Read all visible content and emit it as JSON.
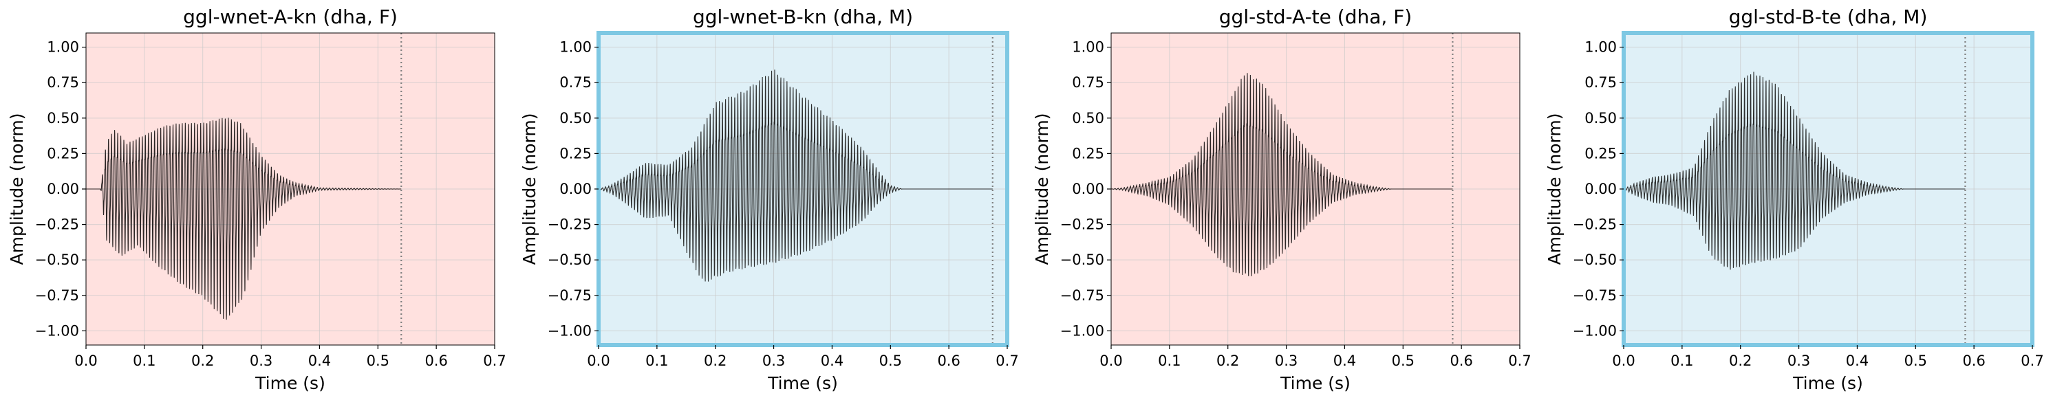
{
  "chart_data": [
    {
      "type": "line",
      "title": "ggl-wnet-A-kn (dha, F)",
      "xlabel": "Time (s)",
      "ylabel": "Amplitude (norm)",
      "xlim": [
        0.0,
        0.7
      ],
      "ylim": [
        -1.1,
        1.1
      ],
      "xticks": [
        "0.0",
        "0.1",
        "0.2",
        "0.3",
        "0.4",
        "0.5",
        "0.6",
        "0.7"
      ],
      "yticks": [
        "1.00",
        "0.75",
        "0.50",
        "0.25",
        "0.00",
        "−0.25",
        "−0.50",
        "−0.75",
        "−1.00"
      ],
      "grid": true,
      "background_color": "#ffe1df",
      "highlight_border": false,
      "end_marker_x": 0.54,
      "signal_end": 0.54,
      "waveform_color": "#2b2424",
      "envelope": [
        [
          0.0,
          0.0
        ],
        [
          0.025,
          0.0
        ],
        [
          0.035,
          0.4
        ],
        [
          0.05,
          0.5
        ],
        [
          0.07,
          0.38
        ],
        [
          0.1,
          0.45
        ],
        [
          0.13,
          0.52
        ],
        [
          0.16,
          0.55
        ],
        [
          0.2,
          0.55
        ],
        [
          0.24,
          0.6
        ],
        [
          0.265,
          0.55
        ],
        [
          0.3,
          0.28
        ],
        [
          0.33,
          0.12
        ],
        [
          0.36,
          0.05
        ],
        [
          0.4,
          0.01
        ],
        [
          0.54,
          0.0
        ]
      ],
      "envelope_negative": [
        [
          0.0,
          0.0
        ],
        [
          0.025,
          0.0
        ],
        [
          0.035,
          -0.38
        ],
        [
          0.06,
          -0.5
        ],
        [
          0.09,
          -0.42
        ],
        [
          0.12,
          -0.56
        ],
        [
          0.16,
          -0.7
        ],
        [
          0.2,
          -0.8
        ],
        [
          0.24,
          -0.98
        ],
        [
          0.27,
          -0.8
        ],
        [
          0.3,
          -0.32
        ],
        [
          0.33,
          -0.14
        ],
        [
          0.36,
          -0.05
        ],
        [
          0.4,
          -0.01
        ],
        [
          0.54,
          0.0
        ]
      ]
    },
    {
      "type": "line",
      "title": "ggl-wnet-B-kn (dha, M)",
      "xlabel": "Time (s)",
      "ylabel": "Amplitude (norm)",
      "xlim": [
        0.0,
        0.7
      ],
      "ylim": [
        -1.1,
        1.1
      ],
      "xticks": [
        "0.0",
        "0.1",
        "0.2",
        "0.3",
        "0.4",
        "0.5",
        "0.6",
        "0.7"
      ],
      "yticks": [
        "1.00",
        "0.75",
        "0.50",
        "0.25",
        "0.00",
        "−0.25",
        "−0.50",
        "−0.75",
        "−1.00"
      ],
      "grid": true,
      "background_color": "#dff0f7",
      "highlight_border": true,
      "border_color": "#7ec8e3",
      "end_marker_x": 0.675,
      "signal_end": 0.675,
      "waveform_color": "#2b2d2d",
      "envelope": [
        [
          0.0,
          0.0
        ],
        [
          0.02,
          0.03
        ],
        [
          0.05,
          0.12
        ],
        [
          0.08,
          0.22
        ],
        [
          0.12,
          0.2
        ],
        [
          0.16,
          0.35
        ],
        [
          0.2,
          0.72
        ],
        [
          0.25,
          0.82
        ],
        [
          0.3,
          1.0
        ],
        [
          0.35,
          0.78
        ],
        [
          0.4,
          0.58
        ],
        [
          0.45,
          0.35
        ],
        [
          0.48,
          0.15
        ],
        [
          0.5,
          0.03
        ],
        [
          0.52,
          0.0
        ],
        [
          0.675,
          0.0
        ]
      ],
      "envelope_negative": [
        [
          0.0,
          0.0
        ],
        [
          0.02,
          -0.03
        ],
        [
          0.05,
          -0.12
        ],
        [
          0.08,
          -0.22
        ],
        [
          0.12,
          -0.2
        ],
        [
          0.16,
          -0.55
        ],
        [
          0.18,
          -0.7
        ],
        [
          0.22,
          -0.62
        ],
        [
          0.26,
          -0.58
        ],
        [
          0.3,
          -0.55
        ],
        [
          0.35,
          -0.48
        ],
        [
          0.4,
          -0.38
        ],
        [
          0.45,
          -0.25
        ],
        [
          0.48,
          -0.1
        ],
        [
          0.5,
          -0.03
        ],
        [
          0.52,
          0.0
        ],
        [
          0.675,
          0.0
        ]
      ]
    },
    {
      "type": "line",
      "title": "ggl-std-A-te (dha, F)",
      "xlabel": "Time (s)",
      "ylabel": "Amplitude (norm)",
      "xlim": [
        0.0,
        0.7
      ],
      "ylim": [
        -1.1,
        1.1
      ],
      "xticks": [
        "0.0",
        "0.1",
        "0.2",
        "0.3",
        "0.4",
        "0.5",
        "0.6",
        "0.7"
      ],
      "yticks": [
        "1.00",
        "0.75",
        "0.50",
        "0.25",
        "0.00",
        "−0.25",
        "−0.50",
        "−0.75",
        "−1.00"
      ],
      "grid": true,
      "background_color": "#ffe1df",
      "highlight_border": false,
      "end_marker_x": 0.585,
      "signal_end": 0.585,
      "waveform_color": "#2b2424",
      "envelope": [
        [
          0.0,
          0.0
        ],
        [
          0.02,
          0.01
        ],
        [
          0.06,
          0.05
        ],
        [
          0.1,
          0.1
        ],
        [
          0.14,
          0.25
        ],
        [
          0.18,
          0.55
        ],
        [
          0.21,
          0.8
        ],
        [
          0.23,
          0.98
        ],
        [
          0.26,
          0.88
        ],
        [
          0.3,
          0.55
        ],
        [
          0.34,
          0.3
        ],
        [
          0.38,
          0.12
        ],
        [
          0.42,
          0.05
        ],
        [
          0.45,
          0.02
        ],
        [
          0.48,
          0.0
        ],
        [
          0.585,
          0.0
        ]
      ],
      "envelope_negative": [
        [
          0.0,
          0.0
        ],
        [
          0.02,
          -0.01
        ],
        [
          0.06,
          -0.05
        ],
        [
          0.1,
          -0.12
        ],
        [
          0.14,
          -0.28
        ],
        [
          0.18,
          -0.5
        ],
        [
          0.21,
          -0.62
        ],
        [
          0.24,
          -0.65
        ],
        [
          0.27,
          -0.58
        ],
        [
          0.3,
          -0.45
        ],
        [
          0.34,
          -0.25
        ],
        [
          0.38,
          -0.1
        ],
        [
          0.42,
          -0.04
        ],
        [
          0.45,
          -0.02
        ],
        [
          0.48,
          0.0
        ],
        [
          0.585,
          0.0
        ]
      ]
    },
    {
      "type": "line",
      "title": "ggl-std-B-te (dha, M)",
      "xlabel": "Time (s)",
      "ylabel": "Amplitude (norm)",
      "xlim": [
        0.0,
        0.7
      ],
      "ylim": [
        -1.1,
        1.1
      ],
      "xticks": [
        "0.0",
        "0.1",
        "0.2",
        "0.3",
        "0.4",
        "0.5",
        "0.6",
        "0.7"
      ],
      "yticks": [
        "1.00",
        "0.75",
        "0.50",
        "0.25",
        "0.00",
        "−0.25",
        "−0.50",
        "−0.75",
        "−1.00"
      ],
      "grid": true,
      "background_color": "#dff0f7",
      "highlight_border": true,
      "border_color": "#7ec8e3",
      "end_marker_x": 0.585,
      "signal_end": 0.585,
      "waveform_color": "#2b2d2d",
      "envelope": [
        [
          0.0,
          0.0
        ],
        [
          0.02,
          0.05
        ],
        [
          0.05,
          0.1
        ],
        [
          0.08,
          0.12
        ],
        [
          0.12,
          0.18
        ],
        [
          0.15,
          0.55
        ],
        [
          0.18,
          0.82
        ],
        [
          0.22,
          0.98
        ],
        [
          0.26,
          0.88
        ],
        [
          0.3,
          0.6
        ],
        [
          0.34,
          0.3
        ],
        [
          0.38,
          0.12
        ],
        [
          0.42,
          0.05
        ],
        [
          0.45,
          0.02
        ],
        [
          0.48,
          0.0
        ],
        [
          0.585,
          0.0
        ]
      ],
      "envelope_negative": [
        [
          0.0,
          0.0
        ],
        [
          0.02,
          -0.05
        ],
        [
          0.05,
          -0.1
        ],
        [
          0.08,
          -0.12
        ],
        [
          0.12,
          -0.2
        ],
        [
          0.15,
          -0.5
        ],
        [
          0.18,
          -0.6
        ],
        [
          0.22,
          -0.55
        ],
        [
          0.26,
          -0.52
        ],
        [
          0.3,
          -0.45
        ],
        [
          0.34,
          -0.22
        ],
        [
          0.38,
          -0.1
        ],
        [
          0.42,
          -0.04
        ],
        [
          0.45,
          -0.02
        ],
        [
          0.48,
          0.0
        ],
        [
          0.585,
          0.0
        ]
      ]
    }
  ]
}
